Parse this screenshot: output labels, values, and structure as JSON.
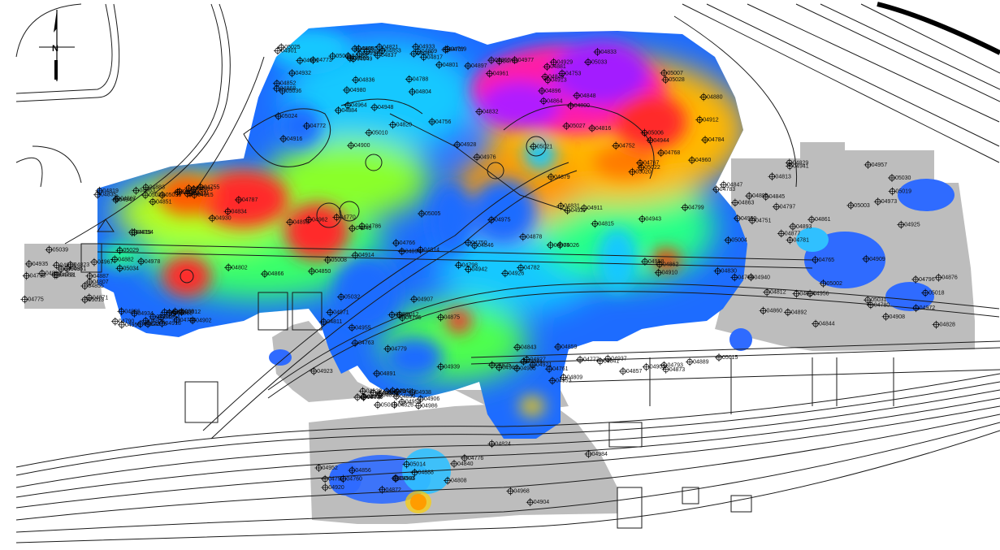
{
  "map": {
    "north_label": "N",
    "colors": {
      "gray_area": "#bdbdbd",
      "background": "#ffffff",
      "line": "#1a1a1a",
      "ramp_low": "#1a4dff",
      "ramp_high": "#9a1aff"
    },
    "wells": [
      {
        "id": "05037"
      },
      {
        "id": "05036"
      },
      {
        "id": "05035"
      },
      {
        "id": "05034"
      },
      {
        "id": "05033"
      },
      {
        "id": "05021"
      },
      {
        "id": "05022"
      },
      {
        "id": "05026"
      },
      {
        "id": "05030"
      },
      {
        "id": "05031"
      },
      {
        "id": "05032"
      },
      {
        "id": "04986"
      },
      {
        "id": "04985"
      },
      {
        "id": "04984"
      },
      {
        "id": "04983"
      },
      {
        "id": "04982"
      },
      {
        "id": "04981"
      },
      {
        "id": "04980"
      },
      {
        "id": "04979"
      },
      {
        "id": "04978"
      },
      {
        "id": "04977"
      },
      {
        "id": "04976"
      },
      {
        "id": "04975"
      },
      {
        "id": "04974"
      },
      {
        "id": "04973"
      },
      {
        "id": "04972"
      },
      {
        "id": "04971"
      },
      {
        "id": "04970"
      },
      {
        "id": "04969"
      },
      {
        "id": "04968"
      },
      {
        "id": "04967"
      },
      {
        "id": "04966"
      },
      {
        "id": "04965"
      },
      {
        "id": "04964"
      },
      {
        "id": "04963"
      },
      {
        "id": "04962"
      },
      {
        "id": "04961"
      },
      {
        "id": "04960"
      },
      {
        "id": "04959"
      },
      {
        "id": "04958"
      },
      {
        "id": "04957"
      },
      {
        "id": "04956"
      },
      {
        "id": "04955"
      },
      {
        "id": "04954"
      },
      {
        "id": "04953"
      },
      {
        "id": "04952"
      },
      {
        "id": "04951"
      },
      {
        "id": "04950"
      },
      {
        "id": "04949"
      },
      {
        "id": "04948"
      },
      {
        "id": "04947"
      },
      {
        "id": "04946"
      },
      {
        "id": "04945"
      },
      {
        "id": "04944"
      },
      {
        "id": "04943"
      },
      {
        "id": "04942"
      },
      {
        "id": "04941"
      },
      {
        "id": "04940"
      },
      {
        "id": "04939"
      },
      {
        "id": "04938"
      },
      {
        "id": "04937"
      },
      {
        "id": "04936"
      },
      {
        "id": "04935"
      },
      {
        "id": "04934"
      },
      {
        "id": "04933"
      },
      {
        "id": "04932"
      },
      {
        "id": "04931"
      },
      {
        "id": "04930"
      },
      {
        "id": "04929"
      },
      {
        "id": "04928"
      },
      {
        "id": "04927"
      },
      {
        "id": "04926"
      },
      {
        "id": "04925"
      },
      {
        "id": "04924"
      },
      {
        "id": "04923"
      },
      {
        "id": "04922"
      },
      {
        "id": "04921"
      },
      {
        "id": "04920"
      },
      {
        "id": "04919"
      },
      {
        "id": "04918"
      },
      {
        "id": "04917"
      },
      {
        "id": "04916"
      },
      {
        "id": "04915"
      },
      {
        "id": "04914"
      },
      {
        "id": "04913"
      },
      {
        "id": "04912"
      },
      {
        "id": "04911"
      },
      {
        "id": "04910"
      },
      {
        "id": "04909"
      },
      {
        "id": "04908"
      },
      {
        "id": "04907"
      },
      {
        "id": "04906"
      },
      {
        "id": "04905"
      },
      {
        "id": "04904"
      },
      {
        "id": "04903"
      },
      {
        "id": "04902"
      },
      {
        "id": "04901"
      },
      {
        "id": "04900"
      },
      {
        "id": "04899"
      },
      {
        "id": "04898"
      },
      {
        "id": "04897"
      },
      {
        "id": "04896"
      },
      {
        "id": "04895"
      },
      {
        "id": "04894"
      },
      {
        "id": "04893"
      },
      {
        "id": "04892"
      },
      {
        "id": "04891"
      },
      {
        "id": "04890"
      },
      {
        "id": "04889"
      },
      {
        "id": "04888"
      },
      {
        "id": "04887"
      },
      {
        "id": "04886"
      },
      {
        "id": "04885"
      },
      {
        "id": "04884"
      },
      {
        "id": "04883"
      },
      {
        "id": "04882"
      },
      {
        "id": "04881"
      },
      {
        "id": "04880"
      },
      {
        "id": "04879"
      },
      {
        "id": "04878"
      },
      {
        "id": "04877"
      },
      {
        "id": "04876"
      },
      {
        "id": "04875"
      },
      {
        "id": "04874"
      },
      {
        "id": "04873"
      },
      {
        "id": "04872"
      },
      {
        "id": "04871"
      },
      {
        "id": "04870"
      },
      {
        "id": "04869"
      },
      {
        "id": "04868"
      },
      {
        "id": "04867"
      },
      {
        "id": "04866"
      },
      {
        "id": "04865"
      },
      {
        "id": "04864"
      },
      {
        "id": "04863"
      },
      {
        "id": "04862"
      },
      {
        "id": "04861"
      },
      {
        "id": "04860"
      },
      {
        "id": "04859"
      },
      {
        "id": "04858"
      },
      {
        "id": "04857"
      },
      {
        "id": "04856"
      },
      {
        "id": "04855"
      },
      {
        "id": "04854"
      },
      {
        "id": "04853"
      },
      {
        "id": "04852"
      },
      {
        "id": "04851"
      },
      {
        "id": "04850"
      },
      {
        "id": "04849"
      },
      {
        "id": "04848"
      },
      {
        "id": "04847"
      },
      {
        "id": "04846"
      },
      {
        "id": "04845"
      },
      {
        "id": "04844"
      },
      {
        "id": "04843"
      },
      {
        "id": "04842"
      },
      {
        "id": "04841"
      },
      {
        "id": "04840"
      },
      {
        "id": "04839"
      },
      {
        "id": "04838"
      },
      {
        "id": "04837"
      },
      {
        "id": "04836"
      },
      {
        "id": "04835"
      },
      {
        "id": "04834"
      },
      {
        "id": "04833"
      },
      {
        "id": "04832"
      },
      {
        "id": "04831"
      },
      {
        "id": "04830"
      },
      {
        "id": "04829"
      },
      {
        "id": "04828"
      },
      {
        "id": "04827"
      },
      {
        "id": "04826"
      },
      {
        "id": "04825"
      },
      {
        "id": "04824"
      },
      {
        "id": "04823"
      },
      {
        "id": "04822"
      },
      {
        "id": "04821"
      },
      {
        "id": "04820"
      },
      {
        "id": "04819"
      },
      {
        "id": "04818"
      },
      {
        "id": "04817"
      },
      {
        "id": "04816"
      },
      {
        "id": "04815"
      },
      {
        "id": "04814"
      },
      {
        "id": "04813"
      },
      {
        "id": "04812"
      },
      {
        "id": "04811"
      },
      {
        "id": "04810"
      },
      {
        "id": "04809"
      },
      {
        "id": "04808"
      },
      {
        "id": "04807"
      },
      {
        "id": "04806"
      },
      {
        "id": "04805"
      },
      {
        "id": "04804"
      },
      {
        "id": "04803"
      },
      {
        "id": "04802"
      },
      {
        "id": "04801"
      },
      {
        "id": "04800"
      },
      {
        "id": "04799"
      },
      {
        "id": "04798"
      },
      {
        "id": "04797"
      },
      {
        "id": "04796"
      },
      {
        "id": "04795"
      },
      {
        "id": "04794"
      },
      {
        "id": "04793"
      },
      {
        "id": "04792"
      },
      {
        "id": "04791"
      },
      {
        "id": "04790"
      },
      {
        "id": "04789"
      },
      {
        "id": "04788"
      },
      {
        "id": "04787"
      },
      {
        "id": "04786"
      },
      {
        "id": "04785"
      },
      {
        "id": "04784"
      },
      {
        "id": "04783"
      },
      {
        "id": "04782"
      },
      {
        "id": "04781"
      },
      {
        "id": "04780"
      },
      {
        "id": "04779"
      },
      {
        "id": "04778"
      },
      {
        "id": "04777"
      },
      {
        "id": "04776"
      },
      {
        "id": "04775"
      },
      {
        "id": "04774"
      },
      {
        "id": "04773"
      },
      {
        "id": "04772"
      },
      {
        "id": "04771"
      },
      {
        "id": "04770"
      },
      {
        "id": "04769"
      },
      {
        "id": "04768"
      },
      {
        "id": "04767"
      },
      {
        "id": "04766"
      },
      {
        "id": "04765"
      },
      {
        "id": "04764"
      },
      {
        "id": "04763"
      },
      {
        "id": "04762"
      },
      {
        "id": "04761"
      },
      {
        "id": "04760"
      },
      {
        "id": "04759"
      },
      {
        "id": "04758"
      },
      {
        "id": "04757"
      },
      {
        "id": "04756"
      },
      {
        "id": "04755"
      },
      {
        "id": "04754"
      },
      {
        "id": "04753"
      },
      {
        "id": "04752"
      },
      {
        "id": "04751"
      },
      {
        "id": "04750"
      },
      {
        "id": "05019"
      },
      {
        "id": "05018"
      },
      {
        "id": "05017"
      },
      {
        "id": "05016"
      },
      {
        "id": "05015"
      },
      {
        "id": "05014"
      },
      {
        "id": "05013"
      },
      {
        "id": "05012"
      },
      {
        "id": "05011"
      },
      {
        "id": "05010"
      },
      {
        "id": "05009"
      },
      {
        "id": "05008"
      },
      {
        "id": "05007"
      },
      {
        "id": "05006"
      },
      {
        "id": "05005"
      },
      {
        "id": "05004"
      },
      {
        "id": "05003"
      },
      {
        "id": "05002"
      },
      {
        "id": "05001"
      },
      {
        "id": "05042"
      },
      {
        "id": "05041"
      },
      {
        "id": "05040"
      },
      {
        "id": "05039"
      },
      {
        "id": "05038"
      },
      {
        "id": "05025"
      },
      {
        "id": "05024"
      },
      {
        "id": "05023"
      },
      {
        "id": "05029"
      },
      {
        "id": "05028"
      },
      {
        "id": "05027"
      },
      {
        "id": "05020"
      }
    ]
  }
}
